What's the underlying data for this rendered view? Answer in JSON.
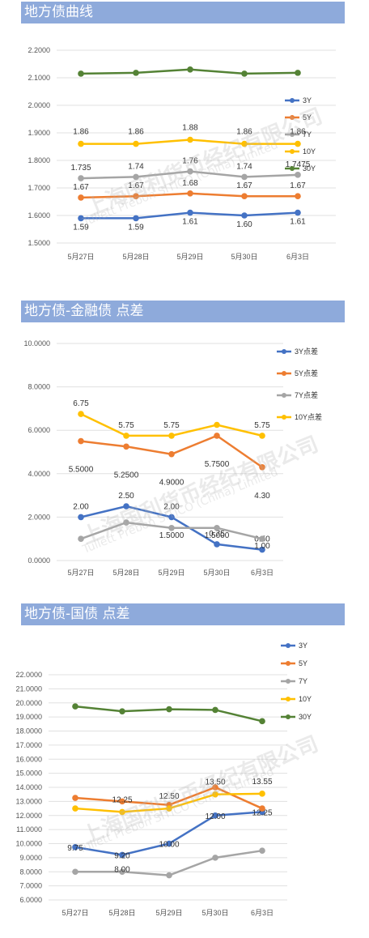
{
  "watermark": {
    "cn": "上海国利货币经纪有限公司",
    "en": "Tullett Prebon SITICO (China) Limited"
  },
  "chart_data": [
    {
      "type": "line",
      "title": "地方债曲线",
      "categories": [
        "5月27日",
        "5月28日",
        "5月29日",
        "5月30日",
        "6月3日"
      ],
      "ylim": [
        1.5,
        2.2
      ],
      "yticks": [
        "1.5000",
        "1.6000",
        "1.7000",
        "1.8000",
        "1.9000",
        "2.0000",
        "2.1000",
        "2.2000"
      ],
      "legend": "right",
      "series": [
        {
          "name": "3Y",
          "color": "#4472c4",
          "values": [
            1.59,
            1.59,
            1.61,
            1.6,
            1.61
          ],
          "labels": [
            "1.59",
            "1.59",
            "1.61",
            "1.60",
            "1.61"
          ]
        },
        {
          "name": "5Y",
          "color": "#ed7d31",
          "values": [
            1.665,
            1.67,
            1.68,
            1.67,
            1.67
          ],
          "labels": [
            "1.67",
            "1.67",
            "1.68",
            "1.67",
            "1.67"
          ]
        },
        {
          "name": "7Y",
          "color": "#a5a5a5",
          "values": [
            1.735,
            1.74,
            1.76,
            1.74,
            1.7475
          ],
          "labels": [
            "1.735",
            "1.74",
            "1.76",
            "1.74",
            "1.7475"
          ]
        },
        {
          "name": "10Y",
          "color": "#ffc000",
          "values": [
            1.86,
            1.86,
            1.875,
            1.86,
            1.86
          ],
          "labels": [
            "1.86",
            "1.86",
            "1.88",
            "1.86",
            "1.86"
          ]
        },
        {
          "name": "30Y",
          "color": "#548235",
          "values": [
            2.115,
            2.118,
            2.13,
            2.115,
            2.118
          ],
          "labels": [
            "",
            "",
            "",
            "",
            ""
          ]
        }
      ]
    },
    {
      "type": "line",
      "title": "地方债-金融债 点差",
      "categories": [
        "5月27日",
        "5月28日",
        "5月29日",
        "5月30日",
        "6月3日"
      ],
      "ylim": [
        0,
        10
      ],
      "yticks": [
        "0.0000",
        "2.0000",
        "4.0000",
        "6.0000",
        "8.0000",
        "10.0000"
      ],
      "legend": "top-right",
      "series": [
        {
          "name": "3Y点差",
          "color": "#4472c4",
          "values": [
            2.0,
            2.5,
            2.0,
            0.75,
            0.5
          ],
          "labels": [
            "2.00",
            "2.50",
            "2.00",
            "0.75",
            "0.50"
          ]
        },
        {
          "name": "5Y点差",
          "color": "#ed7d31",
          "values": [
            5.5,
            5.25,
            4.9,
            5.75,
            4.3
          ],
          "labels": [
            "5.5000",
            "5.2500",
            "4.9000",
            "5.7500",
            "4.30"
          ]
        },
        {
          "name": "7Y点差",
          "color": "#a5a5a5",
          "values": [
            1.0,
            1.75,
            1.5,
            1.5,
            1.0
          ],
          "labels": [
            "",
            "",
            "1.5000",
            "1.5000",
            "1.00"
          ]
        },
        {
          "name": "10Y点差",
          "color": "#ffc000",
          "values": [
            6.75,
            5.75,
            5.75,
            6.25,
            5.75
          ],
          "labels": [
            "6.75",
            "5.75",
            "5.75",
            "",
            "5.75"
          ]
        }
      ]
    },
    {
      "type": "line",
      "title": "地方债-国债 点差",
      "categories": [
        "5月27日",
        "5月28日",
        "5月29日",
        "5月30日",
        "6月3日"
      ],
      "ylim": [
        6,
        22
      ],
      "yticks": [
        "6.0000",
        "7.0000",
        "8.0000",
        "9.0000",
        "10.0000",
        "11.0000",
        "12.0000",
        "13.0000",
        "14.0000",
        "15.0000",
        "16.0000",
        "17.0000",
        "18.0000",
        "19.0000",
        "20.0000",
        "21.0000",
        "22.0000"
      ],
      "legend": "top-right",
      "series": [
        {
          "name": "3Y",
          "color": "#4472c4",
          "values": [
            9.75,
            9.2,
            10.0,
            12.0,
            12.25
          ],
          "labels": [
            "9.75",
            "9.20",
            "10.00",
            "12.00",
            "12.25"
          ]
        },
        {
          "name": "5Y",
          "color": "#ed7d31",
          "values": [
            13.25,
            13.0,
            12.75,
            14.0,
            12.5
          ],
          "labels": [
            "",
            "",
            "",
            "",
            ""
          ]
        },
        {
          "name": "7Y",
          "color": "#a5a5a5",
          "values": [
            8.0,
            8.0,
            7.75,
            9.0,
            9.5
          ],
          "labels": [
            "",
            "8.00",
            "",
            "",
            ""
          ]
        },
        {
          "name": "10Y",
          "color": "#ffc000",
          "values": [
            12.5,
            12.25,
            12.5,
            13.5,
            13.55
          ],
          "labels": [
            "",
            "12.25",
            "12.50",
            "13.50",
            "13.55"
          ]
        },
        {
          "name": "30Y",
          "color": "#548235",
          "values": [
            19.75,
            19.4,
            19.55,
            19.5,
            18.7
          ],
          "labels": [
            "",
            "",
            "",
            "",
            ""
          ]
        }
      ]
    }
  ]
}
